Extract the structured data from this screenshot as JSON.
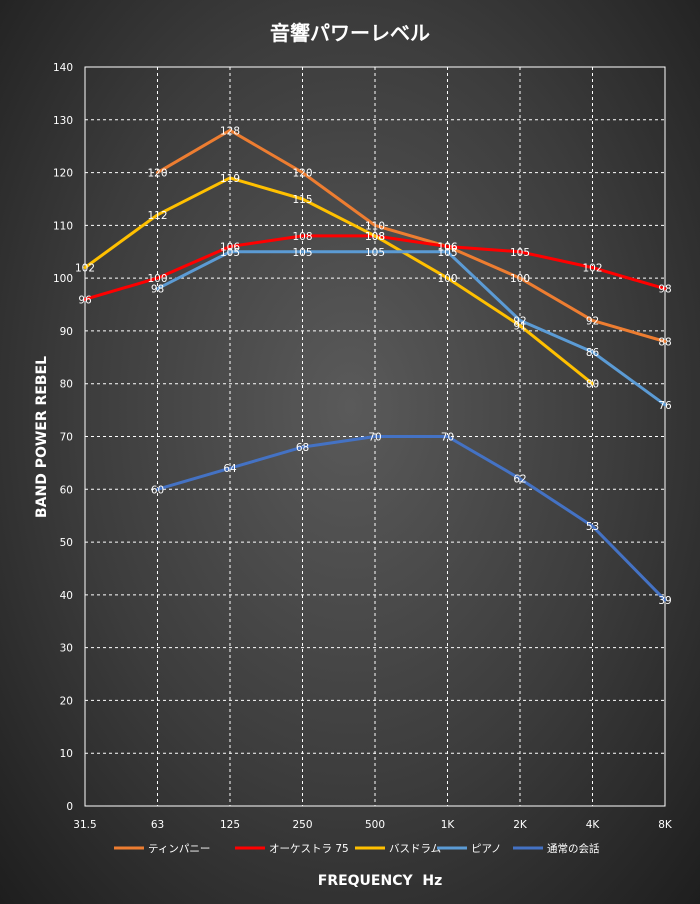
{
  "chart_data": {
    "type": "line",
    "title": "音響パワーレベル",
    "xlabel": "FREQUENCY  Hz",
    "ylabel": "BAND POWER REBEL",
    "ylim": [
      0,
      140
    ],
    "ytick_step": 10,
    "grid": true,
    "legend_position": "bottom",
    "categories": [
      "31.5",
      "63",
      "125",
      "250",
      "500",
      "1K",
      "2K",
      "4K",
      "8K"
    ],
    "series": [
      {
        "name": "ティンパニー",
        "color": "#ed7d31",
        "values": [
          null,
          120,
          128,
          120,
          110,
          106,
          100,
          92,
          88
        ]
      },
      {
        "name": "オーケストラ 75",
        "color": "#ff0000",
        "values": [
          96,
          100,
          106,
          108,
          108,
          106,
          105,
          102,
          98
        ]
      },
      {
        "name": "バスドラム",
        "color": "#ffc000",
        "values": [
          102,
          112,
          119,
          115,
          108,
          100,
          91,
          80,
          null
        ]
      },
      {
        "name": "ピアノ",
        "color": "#5b9bd5",
        "values": [
          null,
          98,
          105,
          105,
          105,
          105,
          92,
          86,
          76
        ]
      },
      {
        "name": "通常の会話",
        "color": "#4472c4",
        "values": [
          null,
          60,
          64,
          68,
          70,
          70,
          62,
          53,
          39
        ]
      }
    ]
  }
}
